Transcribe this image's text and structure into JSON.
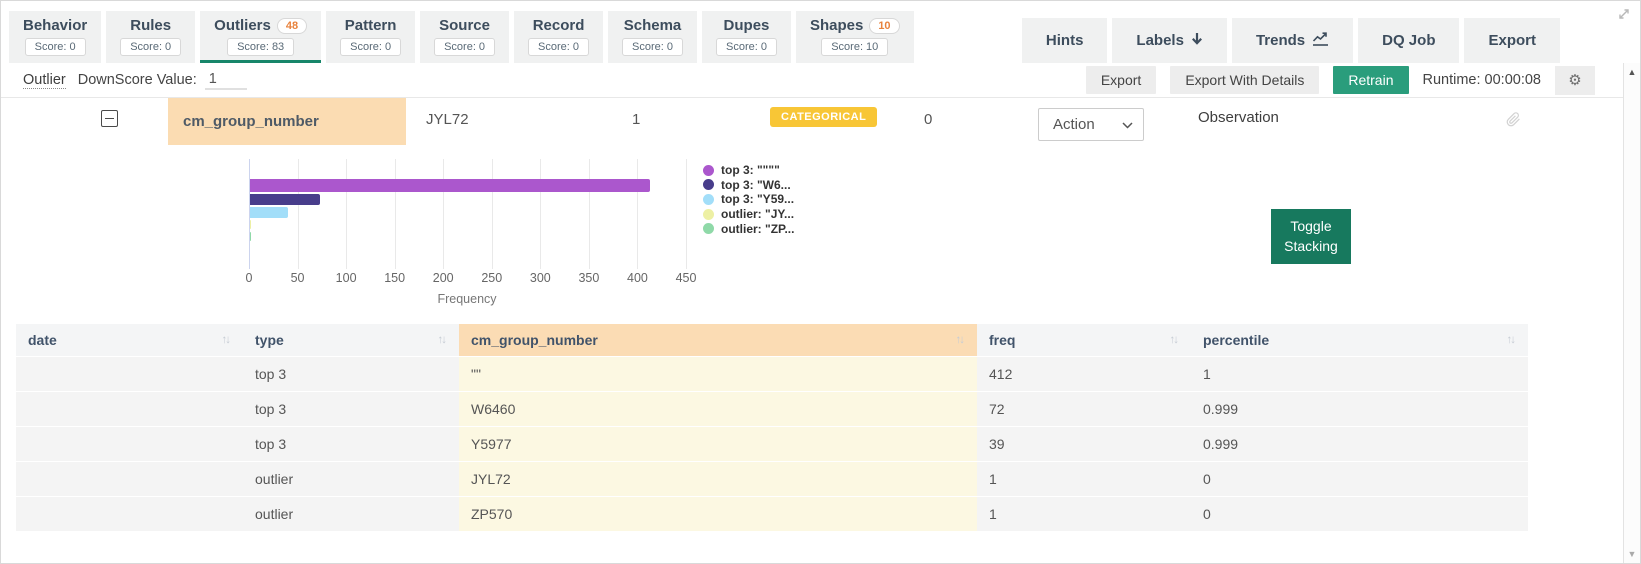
{
  "tabs": [
    {
      "label": "Behavior",
      "score": "Score: 0"
    },
    {
      "label": "Rules",
      "score": "Score: 0"
    },
    {
      "label": "Outliers",
      "badge": "48",
      "score": "Score: 83",
      "active": true
    },
    {
      "label": "Pattern",
      "score": "Score: 0"
    },
    {
      "label": "Source",
      "score": "Score: 0"
    },
    {
      "label": "Record",
      "score": "Score: 0"
    },
    {
      "label": "Schema",
      "score": "Score: 0"
    },
    {
      "label": "Dupes",
      "score": "Score: 0"
    },
    {
      "label": "Shapes",
      "badge": "10",
      "score": "Score: 10"
    }
  ],
  "menu": [
    {
      "label": "Hints"
    },
    {
      "label": "Labels",
      "icon": "down-arrow-icon"
    },
    {
      "label": "Trends",
      "icon": "trend-chart-icon"
    },
    {
      "label": "DQ Job"
    },
    {
      "label": "Export"
    }
  ],
  "toolbar": {
    "outlier_label": "Outlier",
    "downscore_label": "DownScore Value:",
    "downscore_value": "1",
    "export_label": "Export",
    "export_details_label": "Export With Details",
    "retrain_label": "Retrain",
    "runtime_label": "Runtime: 00:00:08"
  },
  "record": {
    "column_name": "cm_group_number",
    "value": "JYL72",
    "frequency": "1",
    "type_badge": "CATEGORICAL",
    "score": "0",
    "action_label": "Action",
    "note_label": "Observation"
  },
  "chart_data": {
    "type": "bar",
    "orientation": "horizontal",
    "xlabel": "Frequency",
    "xticks": [
      0,
      50,
      100,
      150,
      200,
      250,
      300,
      350,
      400,
      450
    ],
    "xlim": [
      0,
      450
    ],
    "grid": true,
    "legend_position": "right",
    "series": [
      {
        "name": "top 3: \"\"\"\"",
        "value": 412,
        "color": "#ab57cd"
      },
      {
        "name": "top 3: \"W6...",
        "value": 72,
        "color": "#483d8b"
      },
      {
        "name": "top 3: \"Y59...",
        "value": 39,
        "color": "#a2def9"
      },
      {
        "name": "outlier: \"JY...",
        "value": 1,
        "color": "#edf0a4"
      },
      {
        "name": "outlier: \"ZP...",
        "value": 1,
        "color": "#8fd9a8"
      }
    ]
  },
  "toggle_stacking": {
    "line1": "Toggle",
    "line2": "Stacking"
  },
  "table": {
    "columns": [
      {
        "label": "date",
        "highlighted": false
      },
      {
        "label": "type",
        "highlighted": false
      },
      {
        "label": "cm_group_number",
        "highlighted": true
      },
      {
        "label": "freq",
        "highlighted": false
      },
      {
        "label": "percentile",
        "highlighted": false
      }
    ],
    "rows": [
      [
        "",
        "top 3",
        "\"\"",
        "412",
        "1"
      ],
      [
        "",
        "top 3",
        "W6460",
        "72",
        "0.999"
      ],
      [
        "",
        "top 3",
        "Y5977",
        "39",
        "0.999"
      ],
      [
        "",
        "outlier",
        "JYL72",
        "1",
        "0"
      ],
      [
        "",
        "outlier",
        "ZP570",
        "1",
        "0"
      ]
    ]
  },
  "colors": {
    "active_tab_green": "#17866a",
    "retrain_green": "#2a9d7c",
    "toggle_green": "#17795e",
    "badge_orange": "#e8823c",
    "categorical_yellow": "#f8c636",
    "column_highlight": "#fbdcb2",
    "cell_highlight": "#fcf8e2"
  }
}
